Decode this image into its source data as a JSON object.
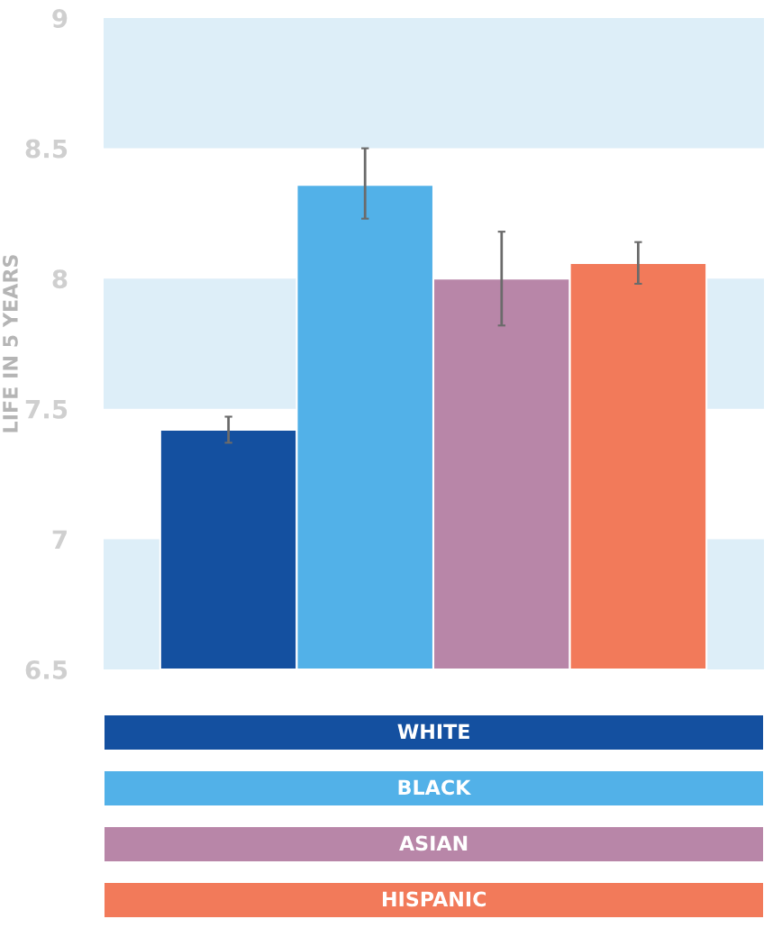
{
  "chart_data": {
    "type": "bar",
    "ylabel": "LIFE IN 5 YEARS",
    "categories": [
      null
    ],
    "series": [
      {
        "name": "WHITE",
        "color": "#1450a0",
        "values": [
          7.42
        ],
        "errors": [
          [
            7.37,
            7.47
          ]
        ]
      },
      {
        "name": "BLACK",
        "color": "#52b1e8",
        "values": [
          8.36
        ],
        "errors": [
          [
            8.23,
            8.5
          ]
        ]
      },
      {
        "name": "ASIAN",
        "color": "#b886a8",
        "values": [
          8.0
        ],
        "errors": [
          [
            7.82,
            8.18
          ]
        ]
      },
      {
        "name": "HISPANIC",
        "color": "#f27a5a",
        "values": [
          8.06
        ],
        "errors": [
          [
            7.98,
            8.14
          ]
        ]
      }
    ],
    "ylim": [
      6.5,
      9
    ],
    "yticks": [
      6.5,
      7,
      7.5,
      8,
      8.5,
      9
    ],
    "bands": [
      {
        "axis": "y",
        "from": 6.5,
        "to": 7,
        "color": "#ddeef8"
      },
      {
        "axis": "y",
        "from": 7.5,
        "to": 8,
        "color": "#ddeef8"
      },
      {
        "axis": "y",
        "from": 8.5,
        "to": 9,
        "color": "#ddeef8"
      }
    ],
    "tick_labels": "y",
    "legend": "bottom",
    "grid": false
  }
}
